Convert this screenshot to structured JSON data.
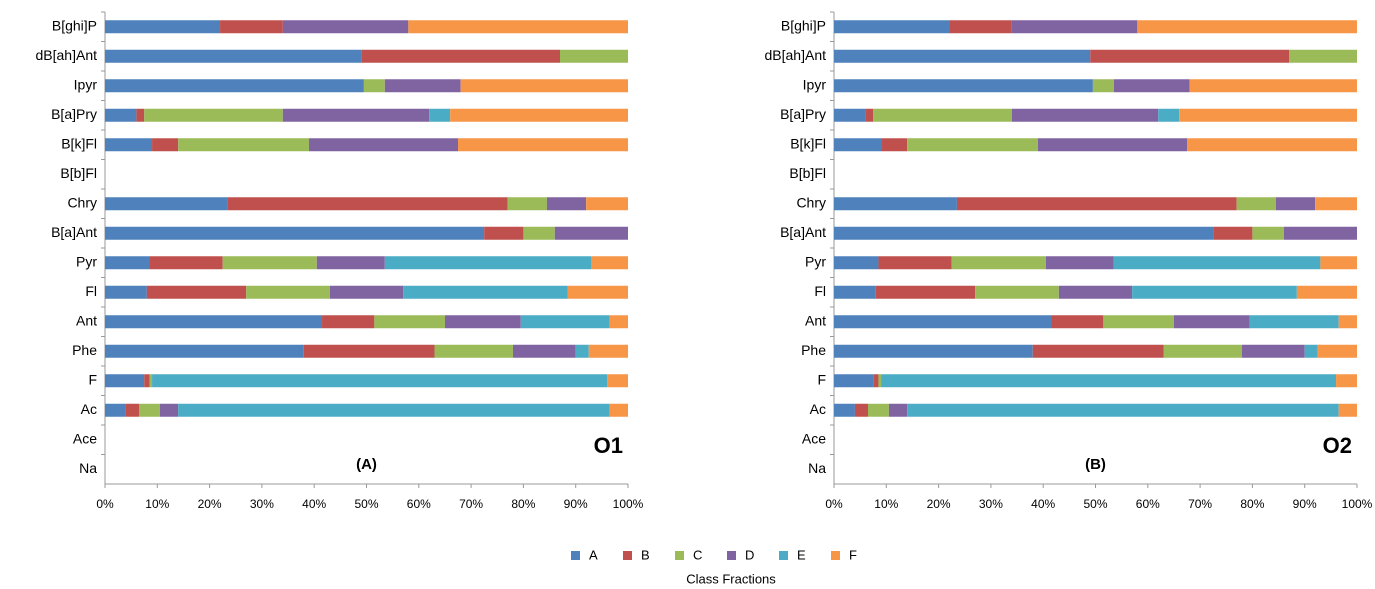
{
  "chart_data": [
    {
      "type": "stacked-barh",
      "label": "(A)",
      "annotation": "O1",
      "legend_title": "Class Fractions",
      "categories": [
        "B[ghi]P",
        "dB[ah]Ant",
        "Ipyr",
        "B[a]Pry",
        "B[k]Fl",
        "B[b]Fl",
        "Chry",
        "B[a]Ant",
        "Pyr",
        "Fl",
        "Ant",
        "Phe",
        "F",
        "Ac",
        "Ace",
        "Na"
      ],
      "series": [
        {
          "name": "A",
          "color": "#4f81bd",
          "values": [
            22,
            49,
            49.5,
            6,
            9,
            0,
            23.5,
            72.5,
            8.5,
            8,
            41.5,
            38,
            7.5,
            4,
            0,
            0
          ]
        },
        {
          "name": "B",
          "color": "#c0504d",
          "values": [
            12,
            38,
            0,
            1.5,
            5,
            0,
            53.5,
            7.5,
            14,
            19,
            10,
            25,
            1,
            2.5,
            0,
            0
          ]
        },
        {
          "name": "C",
          "color": "#9bbb59",
          "values": [
            0,
            13,
            4,
            26.5,
            25,
            0,
            7.5,
            6,
            18,
            16,
            13.5,
            15,
            0.5,
            4,
            0,
            0
          ]
        },
        {
          "name": "D",
          "color": "#8064a2",
          "values": [
            24,
            0,
            14.5,
            28,
            28.5,
            0,
            7.5,
            14,
            13,
            14,
            14.5,
            12,
            0,
            3.5,
            0,
            0
          ]
        },
        {
          "name": "E",
          "color": "#4bacc6",
          "values": [
            0,
            0,
            0,
            4,
            0,
            0,
            0,
            0,
            39.5,
            31.5,
            17,
            2.5,
            87,
            82.5,
            0,
            0
          ]
        },
        {
          "name": "F",
          "color": "#f79646",
          "values": [
            42,
            0,
            32,
            34,
            32.5,
            0,
            8,
            0,
            7,
            11.5,
            3.5,
            7.5,
            4,
            3.5,
            0,
            0
          ]
        }
      ],
      "xlim": [
        0,
        100
      ],
      "xticks": [
        {
          "value": 0,
          "label": "0%"
        },
        {
          "value": 10,
          "label": "10%"
        },
        {
          "value": 20,
          "label": "20%"
        },
        {
          "value": 30,
          "label": "30%"
        },
        {
          "value": 40,
          "label": "40%"
        },
        {
          "value": 50,
          "label": "50%"
        },
        {
          "value": 60,
          "label": "60%"
        },
        {
          "value": 70,
          "label": "70%"
        },
        {
          "value": 80,
          "label": "80%"
        },
        {
          "value": 90,
          "label": "90%"
        },
        {
          "value": 100,
          "label": "100%"
        }
      ]
    },
    {
      "type": "stacked-barh",
      "label": "(B)",
      "annotation": "O2",
      "categories": [
        "B[ghi]P",
        "dB[ah]Ant",
        "Ipyr",
        "B[a]Pry",
        "B[k]Fl",
        "B[b]Fl",
        "Chry",
        "B[a]Ant",
        "Pyr",
        "Fl",
        "Ant",
        "Phe",
        "F",
        "Ac",
        "Ace",
        "Na"
      ],
      "series": [
        {
          "name": "A",
          "color": "#4f81bd",
          "values": [
            22,
            49,
            49.5,
            6,
            9,
            0,
            23.5,
            72.5,
            8.5,
            8,
            41.5,
            38,
            7.5,
            4,
            0,
            0
          ]
        },
        {
          "name": "B",
          "color": "#c0504d",
          "values": [
            12,
            38,
            0,
            1.5,
            5,
            0,
            53.5,
            7.5,
            14,
            19,
            10,
            25,
            1,
            2.5,
            0,
            0
          ]
        },
        {
          "name": "C",
          "color": "#9bbb59",
          "values": [
            0,
            13,
            4,
            26.5,
            25,
            0,
            7.5,
            6,
            18,
            16,
            13.5,
            15,
            0.5,
            4,
            0,
            0
          ]
        },
        {
          "name": "D",
          "color": "#8064a2",
          "values": [
            24,
            0,
            14.5,
            28,
            28.5,
            0,
            7.5,
            14,
            13,
            14,
            14.5,
            12,
            0,
            3.5,
            0,
            0
          ]
        },
        {
          "name": "E",
          "color": "#4bacc6",
          "values": [
            0,
            0,
            0,
            4,
            0,
            0,
            0,
            0,
            39.5,
            31.5,
            17,
            2.5,
            87,
            82.5,
            0,
            0
          ]
        },
        {
          "name": "F",
          "color": "#f79646",
          "values": [
            42,
            0,
            32,
            34,
            32.5,
            0,
            8,
            0,
            7,
            11.5,
            3.5,
            7.5,
            4,
            3.5,
            0,
            0
          ]
        }
      ],
      "xlim": [
        0,
        100
      ],
      "xticks": [
        {
          "value": 0,
          "label": "0%"
        },
        {
          "value": 10,
          "label": "10%"
        },
        {
          "value": 20,
          "label": "20%"
        },
        {
          "value": 30,
          "label": "30%"
        },
        {
          "value": 40,
          "label": "40%"
        },
        {
          "value": 50,
          "label": "50%"
        },
        {
          "value": 60,
          "label": "60%"
        },
        {
          "value": 70,
          "label": "70%"
        },
        {
          "value": 80,
          "label": "80%"
        },
        {
          "value": 90,
          "label": "90%"
        },
        {
          "value": 100,
          "label": "100%"
        }
      ]
    }
  ]
}
